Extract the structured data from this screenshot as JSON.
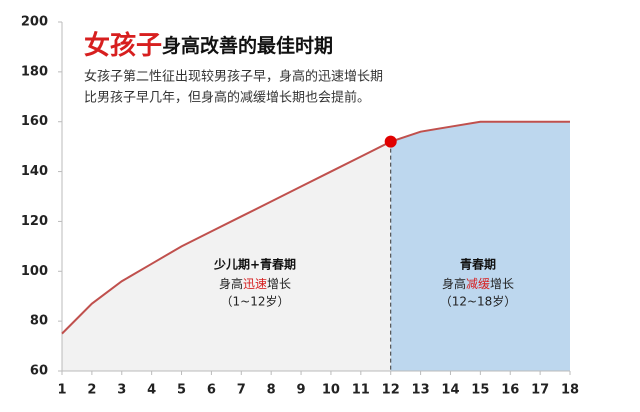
{
  "chart_data": {
    "type": "area",
    "title": [
      "女孩子",
      "身高改善的最佳时期"
    ],
    "title_color": "#d71f1f",
    "subtitle": [
      "女孩子第二性征出现较男孩子早，身高的迅速增长期",
      "比男孩子早几年，但身高的减缓增长期也会提前。"
    ],
    "x": [
      1,
      2,
      3,
      4,
      5,
      6,
      7,
      8,
      9,
      10,
      11,
      12,
      13,
      14,
      15,
      16,
      17,
      18
    ],
    "values": [
      75,
      87,
      96,
      103,
      110,
      116,
      122,
      128,
      134,
      140,
      146,
      152,
      156,
      158,
      160,
      160,
      160,
      160
    ],
    "color": "#c0504d",
    "highlight_x": 12,
    "fill_colors": [
      "#f2f2f2",
      "#bdd7ee"
    ],
    "xlim": [
      1,
      18
    ],
    "xticks": [
      1,
      2,
      3,
      4,
      5,
      6,
      7,
      8,
      9,
      10,
      11,
      12,
      13,
      14,
      15,
      16,
      17,
      18
    ],
    "ylim": [
      60,
      200
    ],
    "yticks": [
      60,
      80,
      100,
      120,
      140,
      160,
      180,
      200
    ],
    "annotations": [
      {
        "title": "少儿期+青春期",
        "text": [
          "身高",
          "迅速",
          "增长"
        ],
        "range": "（1~12岁）"
      },
      {
        "title": "青春期",
        "text": [
          "身高",
          "减缓",
          "增长"
        ],
        "range": "（12~18岁）"
      }
    ]
  }
}
